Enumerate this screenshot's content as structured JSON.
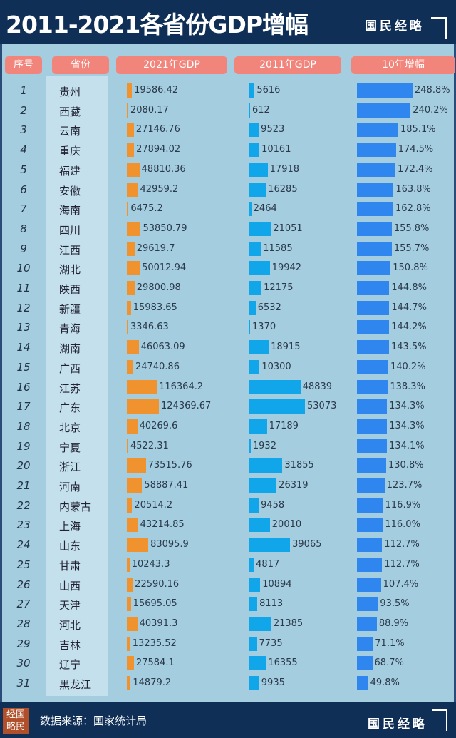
{
  "header": {
    "title": "2011-2021各省份GDP增幅",
    "brand": "国民经略"
  },
  "footer": {
    "source": "数据来源：国家统计局",
    "brand": "国民经略",
    "logo_text": "经国略民"
  },
  "colors": {
    "gdp2021": "#f0922e",
    "gdp2011": "#11a6ea",
    "growth": "#2e86ee"
  },
  "chart_data": {
    "type": "table",
    "title": "2011-2021各省份GDP增幅",
    "columns": [
      "序号",
      "省份",
      "2021年GDP",
      "2011年GDP",
      "10年增幅"
    ],
    "rows": [
      {
        "rank": "1",
        "province": "贵州",
        "gdp2021": "19586.42",
        "gdp2011": "5616",
        "growth": "248.8%"
      },
      {
        "rank": "2",
        "province": "西藏",
        "gdp2021": "2080.17",
        "gdp2011": "612",
        "growth": "240.2%"
      },
      {
        "rank": "3",
        "province": "云南",
        "gdp2021": "27146.76",
        "gdp2011": "9523",
        "growth": "185.1%"
      },
      {
        "rank": "4",
        "province": "重庆",
        "gdp2021": "27894.02",
        "gdp2011": "10161",
        "growth": "174.5%"
      },
      {
        "rank": "5",
        "province": "福建",
        "gdp2021": "48810.36",
        "gdp2011": "17918",
        "growth": "172.4%"
      },
      {
        "rank": "6",
        "province": "安徽",
        "gdp2021": "42959.2",
        "gdp2011": "16285",
        "growth": "163.8%"
      },
      {
        "rank": "7",
        "province": "海南",
        "gdp2021": "6475.2",
        "gdp2011": "2464",
        "growth": "162.8%"
      },
      {
        "rank": "8",
        "province": "四川",
        "gdp2021": "53850.79",
        "gdp2011": "21051",
        "growth": "155.8%"
      },
      {
        "rank": "9",
        "province": "江西",
        "gdp2021": "29619.7",
        "gdp2011": "11585",
        "growth": "155.7%"
      },
      {
        "rank": "10",
        "province": "湖北",
        "gdp2021": "50012.94",
        "gdp2011": "19942",
        "growth": "150.8%"
      },
      {
        "rank": "11",
        "province": "陕西",
        "gdp2021": "29800.98",
        "gdp2011": "12175",
        "growth": "144.8%"
      },
      {
        "rank": "12",
        "province": "新疆",
        "gdp2021": "15983.65",
        "gdp2011": "6532",
        "growth": "144.7%"
      },
      {
        "rank": "13",
        "province": "青海",
        "gdp2021": "3346.63",
        "gdp2011": "1370",
        "growth": "144.2%"
      },
      {
        "rank": "14",
        "province": "湖南",
        "gdp2021": "46063.09",
        "gdp2011": "18915",
        "growth": "143.5%"
      },
      {
        "rank": "15",
        "province": "广西",
        "gdp2021": "24740.86",
        "gdp2011": "10300",
        "growth": "140.2%"
      },
      {
        "rank": "16",
        "province": "江苏",
        "gdp2021": "116364.2",
        "gdp2011": "48839",
        "growth": "138.3%"
      },
      {
        "rank": "17",
        "province": "广东",
        "gdp2021": "124369.67",
        "gdp2011": "53073",
        "growth": "134.3%"
      },
      {
        "rank": "18",
        "province": "北京",
        "gdp2021": "40269.6",
        "gdp2011": "17189",
        "growth": "134.3%"
      },
      {
        "rank": "19",
        "province": "宁夏",
        "gdp2021": "4522.31",
        "gdp2011": "1932",
        "growth": "134.1%"
      },
      {
        "rank": "20",
        "province": "浙江",
        "gdp2021": "73515.76",
        "gdp2011": "31855",
        "growth": "130.8%"
      },
      {
        "rank": "21",
        "province": "河南",
        "gdp2021": "58887.41",
        "gdp2011": "26319",
        "growth": "123.7%"
      },
      {
        "rank": "22",
        "province": "内蒙古",
        "gdp2021": "20514.2",
        "gdp2011": "9458",
        "growth": "116.9%"
      },
      {
        "rank": "23",
        "province": "上海",
        "gdp2021": "43214.85",
        "gdp2011": "20010",
        "growth": "116.0%"
      },
      {
        "rank": "24",
        "province": "山东",
        "gdp2021": "83095.9",
        "gdp2011": "39065",
        "growth": "112.7%"
      },
      {
        "rank": "25",
        "province": "甘肃",
        "gdp2021": "10243.3",
        "gdp2011": "4817",
        "growth": "112.7%"
      },
      {
        "rank": "26",
        "province": "山西",
        "gdp2021": "22590.16",
        "gdp2011": "10894",
        "growth": "107.4%"
      },
      {
        "rank": "27",
        "province": "天津",
        "gdp2021": "15695.05",
        "gdp2011": "8113",
        "growth": "93.5%"
      },
      {
        "rank": "28",
        "province": "河北",
        "gdp2021": "40391.3",
        "gdp2011": "21385",
        "growth": "88.9%"
      },
      {
        "rank": "29",
        "province": "吉林",
        "gdp2021": "13235.52",
        "gdp2011": "7735",
        "growth": "71.1%"
      },
      {
        "rank": "30",
        "province": "辽宁",
        "gdp2021": "27584.1",
        "gdp2011": "16355",
        "growth": "68.7%"
      },
      {
        "rank": "31",
        "province": "黑龙江",
        "gdp2021": "14879.2",
        "gdp2011": "9935",
        "growth": "49.8%"
      }
    ]
  }
}
